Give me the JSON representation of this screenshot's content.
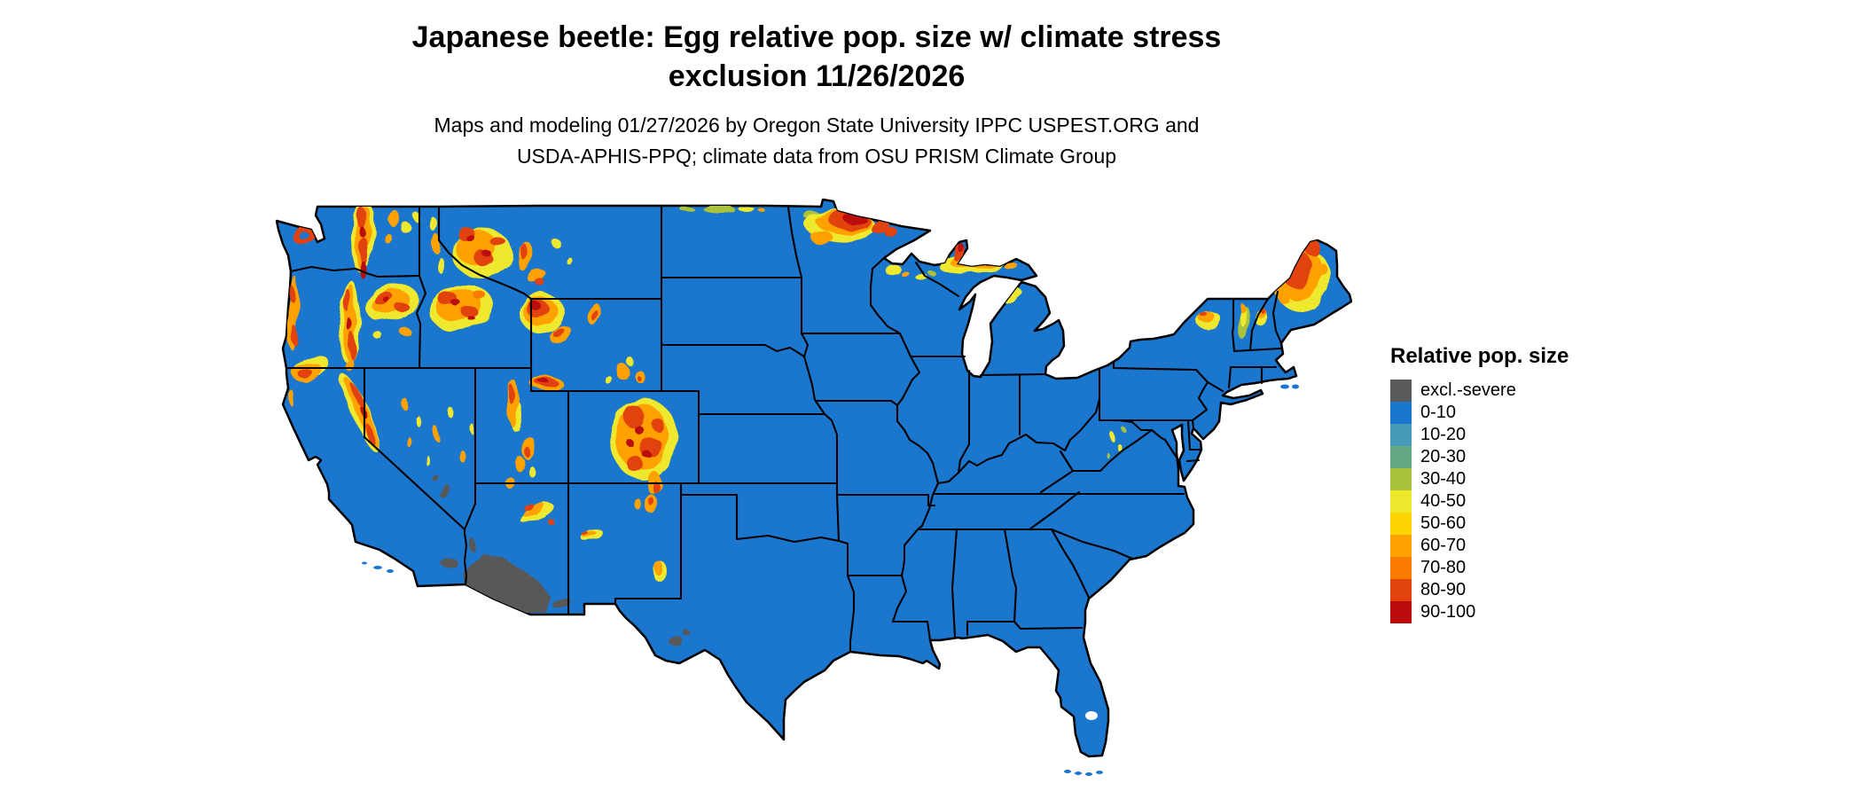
{
  "header": {
    "title_line1": "Japanese beetle: Egg relative pop. size w/ climate stress",
    "title_line2": "exclusion 11/26/2026",
    "subtitle_line1": "Maps and modeling 01/27/2026 by Oregon State University IPPC USPEST.ORG and",
    "subtitle_line2": "USDA-APHIS-PPQ; climate data from OSU PRISM Climate Group"
  },
  "legend": {
    "title": "Relative pop. size",
    "items": [
      {
        "label": "excl.-severe",
        "color": "#595959"
      },
      {
        "label": "0-10",
        "color": "#1b76cd"
      },
      {
        "label": "10-20",
        "color": "#4699b8"
      },
      {
        "label": "20-30",
        "color": "#62a983"
      },
      {
        "label": "30-40",
        "color": "#a8c23c"
      },
      {
        "label": "40-50",
        "color": "#eee82d"
      },
      {
        "label": "50-60",
        "color": "#ffd400"
      },
      {
        "label": "60-70",
        "color": "#ffa200"
      },
      {
        "label": "70-80",
        "color": "#f97c00"
      },
      {
        "label": "80-90",
        "color": "#e2430c"
      },
      {
        "label": "90-100",
        "color": "#bb0c0c"
      }
    ]
  },
  "map": {
    "land_color": "#1b76cd",
    "border_color": "#000000",
    "exclusion_color": "#595959"
  }
}
